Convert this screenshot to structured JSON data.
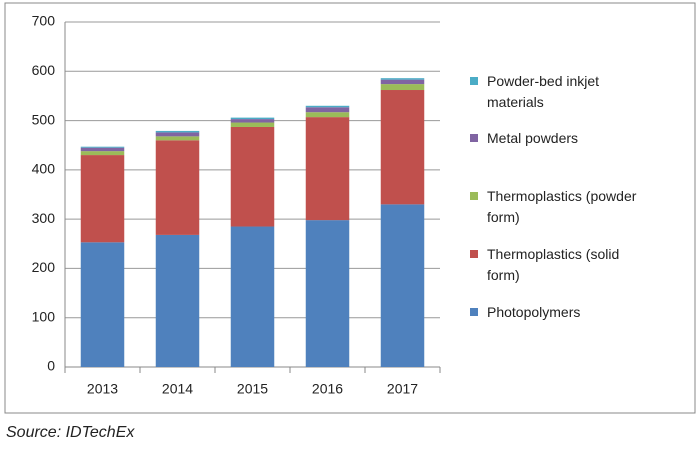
{
  "chart_data": {
    "type": "stacked_bar",
    "categories": [
      "2013",
      "2014",
      "2015",
      "2016",
      "2017"
    ],
    "series": [
      {
        "name": "Photopolymers",
        "color": "#4f81bd",
        "values": [
          253,
          268,
          285,
          298,
          330
        ]
      },
      {
        "name": "Thermoplastics (solid form)",
        "color": "#c0504d",
        "values": [
          177,
          192,
          202,
          209,
          232
        ]
      },
      {
        "name": "Thermoplastics (powder form)",
        "color": "#9bbb59",
        "values": [
          8,
          8,
          9,
          10,
          12
        ]
      },
      {
        "name": "Metal powders",
        "color": "#8064a2",
        "values": [
          7,
          8,
          7,
          10,
          9
        ]
      },
      {
        "name": "Powder-bed inkjet materials",
        "color": "#4bacc6",
        "values": [
          2,
          3,
          3,
          3,
          3
        ]
      }
    ],
    "ylim": [
      0,
      700
    ],
    "yticks": [
      0,
      100,
      200,
      300,
      400,
      500,
      600,
      700
    ],
    "grid": true,
    "legend": "right",
    "source": "Source: IDTechEx"
  }
}
